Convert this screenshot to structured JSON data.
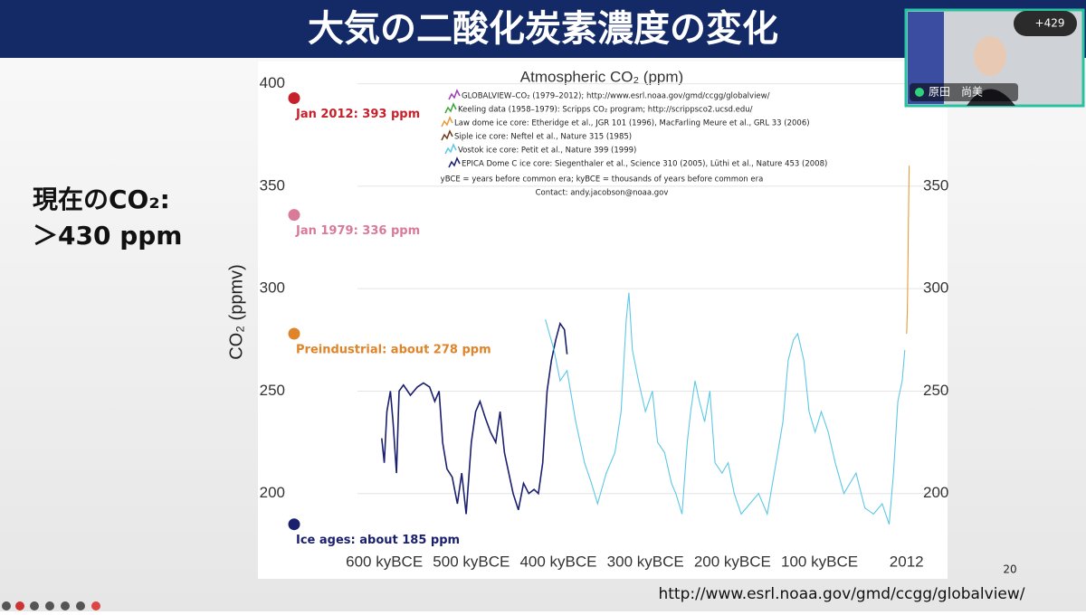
{
  "slide": {
    "title": "大気の二酸化炭素濃度の変化",
    "note_lines": [
      "現在のCO₂:",
      "＞430 ppm"
    ],
    "page_number": "20",
    "url": "http://www.esrl.noaa.gov/gmd/ccgg/globalview/"
  },
  "video": {
    "participant": "原田　尚美",
    "count": "+429"
  },
  "chart_data": {
    "type": "line",
    "title": "Atmospheric CO₂ (ppm)",
    "y_label": "CO₂ (ppmv)",
    "legend": [
      {
        "text": "GLOBALVIEW–CO₂ (1979–2012); http://www.esrl.noaa.gov/gmd/ccgg/globalview/",
        "color": "#9b3fb5"
      },
      {
        "text": "Keeling data (1958–1979): Scripps CO₂ program; http://scrippsco2.ucsd.edu/",
        "color": "#3aa53a"
      },
      {
        "text": "Law dome ice core:  Etheridge et al., JGR 101 (1996), MacFarling Meure et al., GRL 33 (2006)",
        "color": "#e69a3c"
      },
      {
        "text": "Siple ice core:  Neftel et al., Nature 315 (1985)",
        "color": "#6b3d1e"
      },
      {
        "text": "Vostok ice core:  Petit et al., Nature 399 (1999)",
        "color": "#5cc8e6"
      },
      {
        "text": "EPICA Dome C ice core:  Siegenthaler et al., Science 310 (2005), Lüthi et al., Nature 453 (2008)",
        "color": "#1a1f6e"
      }
    ],
    "credits": [
      "yBCE = years before common era; kyBCE = thousands of years before common era",
      "Contact: andy.jacobson@noaa.gov"
    ],
    "annotations": [
      {
        "text": "Jan 2012: 393 ppm",
        "value": 393,
        "color": "#c8202a"
      },
      {
        "text": "Jan 1979: 336 ppm",
        "value": 336,
        "color": "#d97a98"
      },
      {
        "text": "Preindustrial: about 278 ppm",
        "value": 278,
        "color": "#e0842a"
      },
      {
        "text": "Ice ages: about 185 ppm",
        "value": 185,
        "color": "#1a1f6e"
      }
    ],
    "xlim": [
      -740,
      45
    ],
    "ylim": [
      165,
      410
    ],
    "xticks": [
      {
        "value": -600,
        "label": "600 kyBCE"
      },
      {
        "value": -500,
        "label": "500 kyBCE"
      },
      {
        "value": -400,
        "label": "400 kyBCE"
      },
      {
        "value": -300,
        "label": "300 kyBCE"
      },
      {
        "value": -200,
        "label": "200 kyBCE"
      },
      {
        "value": -100,
        "label": "100 kyBCE"
      },
      {
        "value": 0,
        "label": "2012"
      }
    ],
    "yticks": [
      200,
      250,
      300,
      350,
      400
    ],
    "y2lim": [
      165,
      410
    ],
    "y2ticks": [
      200,
      250,
      300,
      350
    ],
    "grid": true,
    "series": [
      {
        "color": "#1a1f6e",
        "x": [
          -603,
          -600,
          -597,
          -593,
          -590,
          -586,
          -583,
          -578,
          -570,
          -562,
          -555,
          -548,
          -542,
          -537,
          -533,
          -528,
          -522,
          -516,
          -511,
          -506,
          -500,
          -495,
          -490,
          -484,
          -478,
          -472,
          -467,
          -462,
          -457,
          -452,
          -446,
          -440,
          -434,
          -428,
          -423,
          -418,
          -413,
          -408,
          -403,
          -398,
          -393,
          -390
        ],
        "values": [
          227,
          215,
          240,
          250,
          235,
          210,
          250,
          253,
          248,
          252,
          254,
          252,
          245,
          250,
          225,
          212,
          208,
          195,
          210,
          190,
          225,
          240,
          245,
          237,
          230,
          225,
          240,
          220,
          210,
          200,
          192,
          205,
          200,
          202,
          200,
          215,
          250,
          265,
          275,
          283,
          280,
          268
        ]
      },
      {
        "color": "#5cc8e6",
        "x": [
          -415,
          -405,
          -398,
          -390,
          -380,
          -370,
          -362,
          -355,
          -345,
          -335,
          -328,
          -322,
          -319,
          -315,
          -308,
          -300,
          -292,
          -286,
          -278,
          -270,
          -265,
          -258,
          -252,
          -248,
          -243,
          -238,
          -232,
          -226,
          -220,
          -212,
          -205,
          -198,
          -190,
          -180,
          -170,
          -160,
          -150,
          -142,
          -136,
          -130,
          -125,
          -118,
          -112,
          -105,
          -98,
          -90,
          -82,
          -72,
          -65,
          -58,
          -48,
          -38,
          -28,
          -20,
          -15,
          -10,
          -5,
          -2
        ],
        "values": [
          285,
          270,
          255,
          260,
          235,
          215,
          205,
          195,
          210,
          220,
          240,
          285,
          298,
          270,
          255,
          240,
          250,
          225,
          220,
          205,
          200,
          190,
          225,
          240,
          255,
          245,
          235,
          250,
          215,
          210,
          215,
          200,
          190,
          195,
          200,
          190,
          215,
          235,
          265,
          275,
          278,
          265,
          240,
          230,
          240,
          230,
          215,
          200,
          205,
          210,
          193,
          190,
          195,
          185,
          210,
          245,
          255,
          270
        ]
      },
      {
        "color": "#e69a3c",
        "x": [
          0,
          0.3,
          0.6,
          0.9,
          1.2,
          1.5,
          1.8,
          2.1,
          2.4,
          2.7,
          3
        ],
        "values": [
          278,
          280,
          285,
          290,
          300,
          310,
          320,
          330,
          340,
          350,
          360
        ]
      }
    ]
  }
}
